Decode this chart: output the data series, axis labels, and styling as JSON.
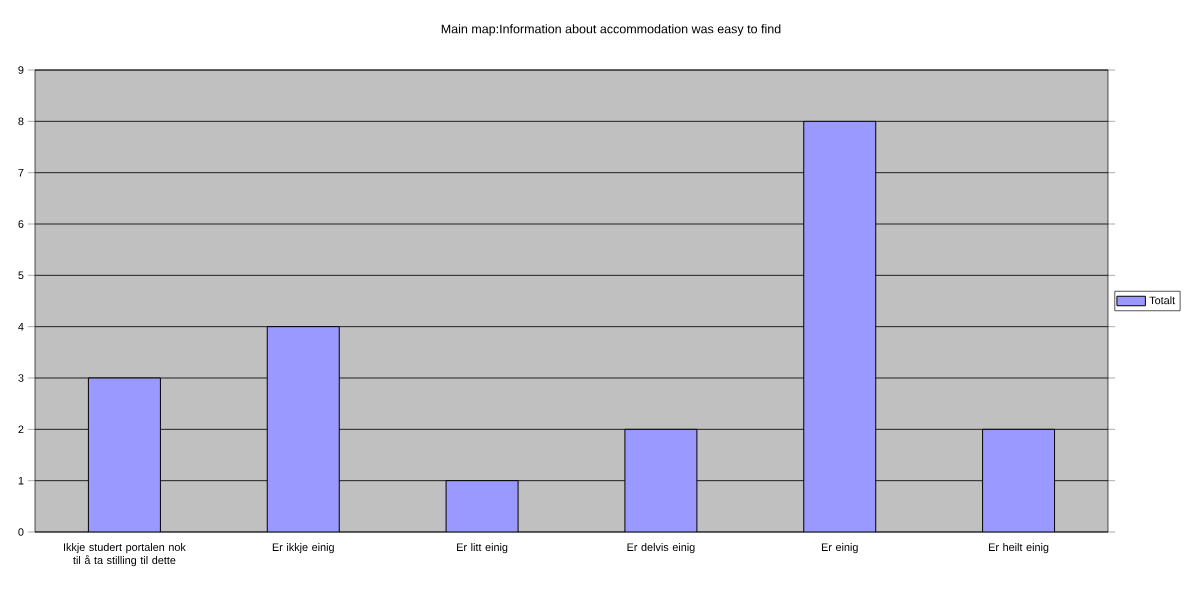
{
  "chart_data": {
    "type": "bar",
    "title": "Main map:Information about accommodation was easy to find",
    "categories": [
      "Ikkje studert portalen nok til å ta stilling til dette",
      "Er ikkje einig",
      "Er litt einig",
      "Er delvis einig",
      "Er einig",
      "Er heilt einig"
    ],
    "series": [
      {
        "name": "Totalt",
        "color": "#9999ff",
        "values": [
          3,
          4,
          1,
          2,
          8,
          2
        ]
      }
    ],
    "ylim": [
      0,
      9
    ],
    "yticks": [
      0,
      1,
      2,
      3,
      4,
      5,
      6,
      7,
      8,
      9
    ],
    "grid": "y",
    "legend": "right"
  }
}
